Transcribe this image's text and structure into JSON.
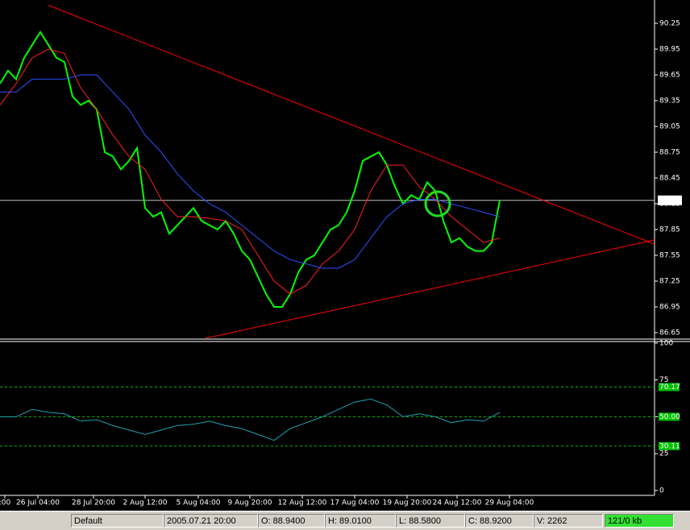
{
  "chart_data": [
    {
      "type": "line",
      "panel": "price",
      "xlim": [
        0,
        81.2
      ],
      "ylim": [
        86.584,
        90.522
      ],
      "yticks": [
        90.25,
        89.95,
        89.65,
        89.35,
        89.05,
        88.75,
        88.45,
        88.15,
        87.85,
        87.55,
        87.25,
        86.95,
        86.65
      ],
      "xticks": [
        {
          "value": 0.6,
          "label": ":00"
        },
        {
          "value": 4.7,
          "label": "26 Jul 04:00"
        },
        {
          "value": 11.6,
          "label": "28 Jul 20:00"
        },
        {
          "value": 18,
          "label": "2 Aug 12:00"
        },
        {
          "value": 24.6,
          "label": "5 Aug 04:00"
        },
        {
          "value": 31,
          "label": "9 Aug 20:00"
        },
        {
          "value": 37.5,
          "label": "12 Aug 12:00"
        },
        {
          "value": 44,
          "label": "17 Aug 04:00"
        },
        {
          "value": 50.5,
          "label": "19 Aug 20:00"
        },
        {
          "value": 56.7,
          "label": "24 Aug 12:00"
        },
        {
          "value": 63.2,
          "label": "29 Aug 04:00"
        }
      ],
      "current_price": {
        "value": 88.19,
        "label": "88.19"
      },
      "series": [
        {
          "color": "#00ff00",
          "x": [
            0,
            1,
            2,
            3,
            4,
            5,
            6,
            7,
            8,
            9,
            10,
            11,
            12,
            13,
            14,
            15,
            16,
            17,
            18,
            19,
            20,
            21,
            22,
            23,
            24,
            25,
            26,
            27,
            28,
            29,
            30,
            31,
            32,
            33,
            34,
            35,
            36,
            37,
            38,
            39,
            40,
            41,
            42,
            43,
            44,
            45,
            46,
            47,
            48,
            49,
            50,
            51,
            52,
            53,
            54,
            55,
            56,
            57,
            58,
            59,
            60,
            61,
            62
          ],
          "values": [
            89.55,
            89.7,
            89.6,
            89.85,
            90.0,
            90.15,
            90.0,
            89.85,
            89.8,
            89.4,
            89.3,
            89.35,
            89.25,
            88.75,
            88.7,
            88.55,
            88.65,
            88.8,
            88.1,
            88.0,
            88.05,
            87.8,
            87.9,
            88.0,
            88.1,
            87.95,
            87.9,
            87.85,
            87.95,
            87.8,
            87.6,
            87.5,
            87.3,
            87.1,
            86.95,
            86.95,
            87.1,
            87.35,
            87.5,
            87.55,
            87.7,
            87.85,
            87.9,
            88.05,
            88.3,
            88.65,
            88.7,
            88.75,
            88.6,
            88.35,
            88.15,
            88.25,
            88.2,
            88.4,
            88.3,
            87.95,
            87.7,
            87.75,
            87.65,
            87.6,
            87.6,
            87.7,
            88.19
          ]
        },
        {
          "color": "#ff2020",
          "x": [
            0,
            2,
            4,
            6,
            8,
            10,
            12,
            14,
            16,
            18,
            20,
            22,
            24,
            26,
            28,
            30,
            32,
            34,
            36,
            38,
            40,
            42,
            44,
            46,
            48,
            50,
            52,
            54,
            56,
            58,
            60,
            62
          ],
          "values": [
            89.3,
            89.55,
            89.85,
            89.95,
            89.9,
            89.5,
            89.25,
            88.95,
            88.7,
            88.55,
            88.2,
            88.0,
            88.0,
            87.98,
            87.95,
            87.85,
            87.55,
            87.25,
            87.1,
            87.2,
            87.45,
            87.6,
            87.85,
            88.3,
            88.6,
            88.6,
            88.35,
            88.2,
            88.0,
            87.85,
            87.7,
            87.75
          ]
        },
        {
          "color": "#3050ff",
          "x": [
            0,
            2,
            4,
            6,
            8,
            10,
            12,
            14,
            16,
            18,
            20,
            22,
            24,
            26,
            28,
            30,
            32,
            34,
            36,
            38,
            40,
            42,
            44,
            46,
            48,
            50,
            52,
            54,
            56,
            58,
            60,
            62
          ],
          "values": [
            89.45,
            89.45,
            89.6,
            89.6,
            89.6,
            89.65,
            89.65,
            89.45,
            89.25,
            88.95,
            88.75,
            88.5,
            88.3,
            88.15,
            88.05,
            87.9,
            87.75,
            87.6,
            87.5,
            87.45,
            87.4,
            87.4,
            87.5,
            87.75,
            88.0,
            88.15,
            88.2,
            88.2,
            88.15,
            88.1,
            88.05,
            88.0
          ]
        },
        {
          "color": "#ff0000",
          "x": [
            6,
            81.2
          ],
          "values": [
            90.46,
            87.68
          ]
        },
        {
          "color": "#ff0000",
          "x": [
            25.5,
            81.2
          ],
          "values": [
            86.584,
            87.73
          ]
        }
      ]
    },
    {
      "type": "line",
      "panel": "rsi",
      "xlim": [
        0,
        81.2
      ],
      "ylim": [
        -3.3,
        100.5
      ],
      "yticks": [
        100,
        75,
        50,
        25,
        0
      ],
      "levels": [
        {
          "value": 70.17,
          "label": "70.17"
        },
        {
          "value": 50,
          "label": "50.00"
        },
        {
          "value": 30.11,
          "label": "30.11"
        }
      ],
      "series": [
        {
          "color": "#20a0b0",
          "x": [
            0,
            2,
            4,
            6,
            8,
            10,
            12,
            14,
            16,
            18,
            20,
            22,
            24,
            26,
            28,
            30,
            32,
            34,
            36,
            38,
            40,
            42,
            44,
            46,
            48,
            50,
            52,
            54,
            56,
            58,
            60,
            62
          ],
          "values": [
            50,
            50,
            55,
            53,
            52,
            47,
            48,
            44,
            41,
            38,
            41,
            44,
            45,
            47,
            44,
            42,
            38,
            34,
            42,
            46,
            50,
            55,
            60,
            62,
            58,
            50,
            52,
            50,
            46,
            48,
            47,
            53
          ]
        }
      ]
    }
  ],
  "status_bar": [
    "Default",
    "2005.07.21 20:00",
    "O: 88.9400",
    "H: 89.0100",
    "L: 88.5800",
    "C: 88.9200",
    "V: 2262",
    "121/0 kb"
  ]
}
